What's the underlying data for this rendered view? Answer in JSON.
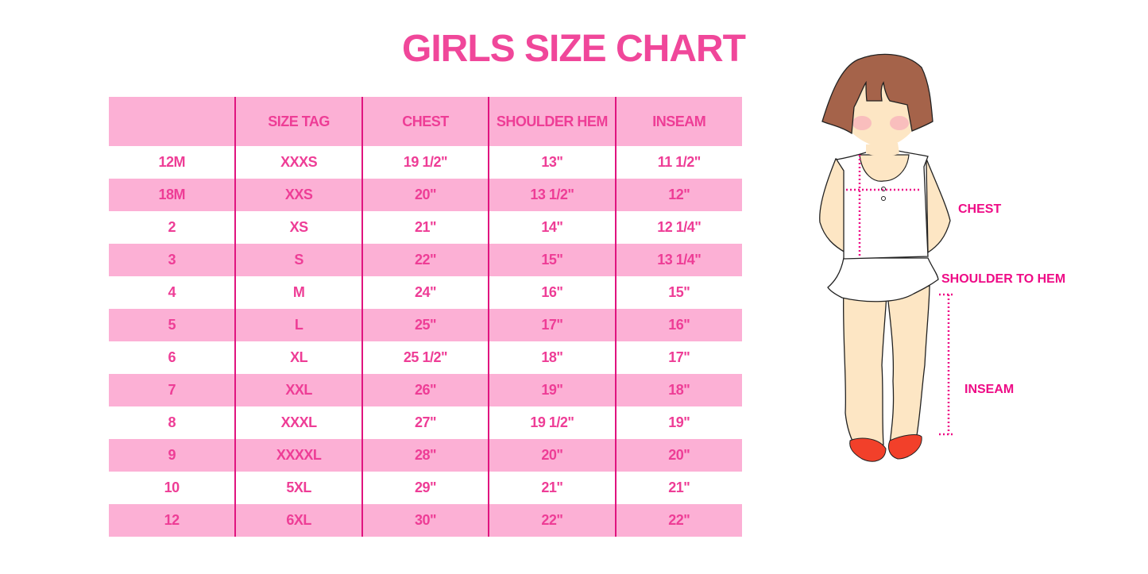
{
  "title": "GIRLS SIZE CHART",
  "colors": {
    "title": "#f0479a",
    "band": "#fcb0d5",
    "text": "#ee3d96",
    "divider": "#e0147f",
    "label": "#ee0b86"
  },
  "table": {
    "headers": [
      "",
      "SIZE TAG",
      "CHEST",
      "SHOULDER HEM",
      "INSEAM"
    ],
    "rows": [
      [
        "12M",
        "XXXS",
        "19 1/2\"",
        "13\"",
        "11 1/2\""
      ],
      [
        "18M",
        "XXS",
        "20\"",
        "13 1/2\"",
        "12\""
      ],
      [
        "2",
        "XS",
        "21\"",
        "14\"",
        "12 1/4\""
      ],
      [
        "3",
        "S",
        "22\"",
        "15\"",
        "13 1/4\""
      ],
      [
        "4",
        "M",
        "24\"",
        "16\"",
        "15\""
      ],
      [
        "5",
        "L",
        "25\"",
        "17\"",
        "16\""
      ],
      [
        "6",
        "XL",
        "25 1/2\"",
        "18\"",
        "17\""
      ],
      [
        "7",
        "XXL",
        "26\"",
        "19\"",
        "18\""
      ],
      [
        "8",
        "XXXL",
        "27\"",
        "19 1/2\"",
        "19\""
      ],
      [
        "9",
        "XXXXL",
        "28\"",
        "20\"",
        "20\""
      ],
      [
        "10",
        "5XL",
        "29\"",
        "21\"",
        "21\""
      ],
      [
        "12",
        "6XL",
        "30\"",
        "22\"",
        "22\""
      ]
    ]
  },
  "figure": {
    "labels": {
      "chest": "CHEST",
      "shoulder_to_hem": "SHOULDER TO HEM",
      "inseam": "INSEAM"
    }
  }
}
